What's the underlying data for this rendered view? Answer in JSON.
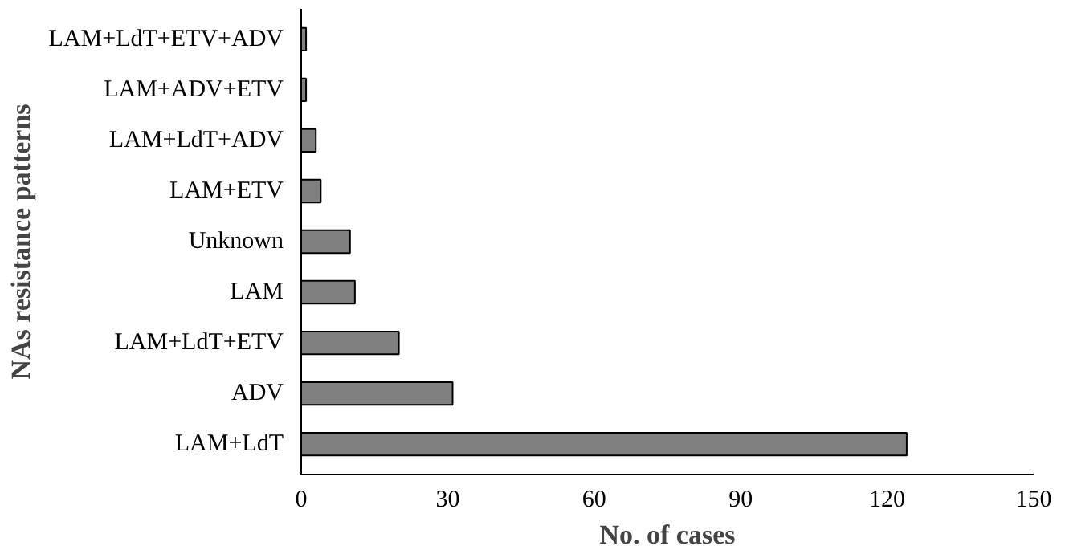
{
  "chart_data": {
    "type": "bar",
    "orientation": "horizontal",
    "xlabel": "No. of cases",
    "ylabel": "NAs resistance patterns",
    "categories": [
      "LAM+LdT+ETV+ADV",
      "LAM+ADV+ETV",
      "LAM+LdT+ADV",
      "LAM+ETV",
      "Unknown",
      "LAM",
      "LAM+LdT+ETV",
      "ADV",
      "LAM+LdT"
    ],
    "values": [
      1,
      1,
      3,
      4,
      10,
      11,
      20,
      31,
      124
    ],
    "color": "#808080",
    "xlim": [
      0,
      150
    ],
    "xticks": [
      0,
      30,
      60,
      90,
      120,
      150
    ],
    "grid": false
  }
}
